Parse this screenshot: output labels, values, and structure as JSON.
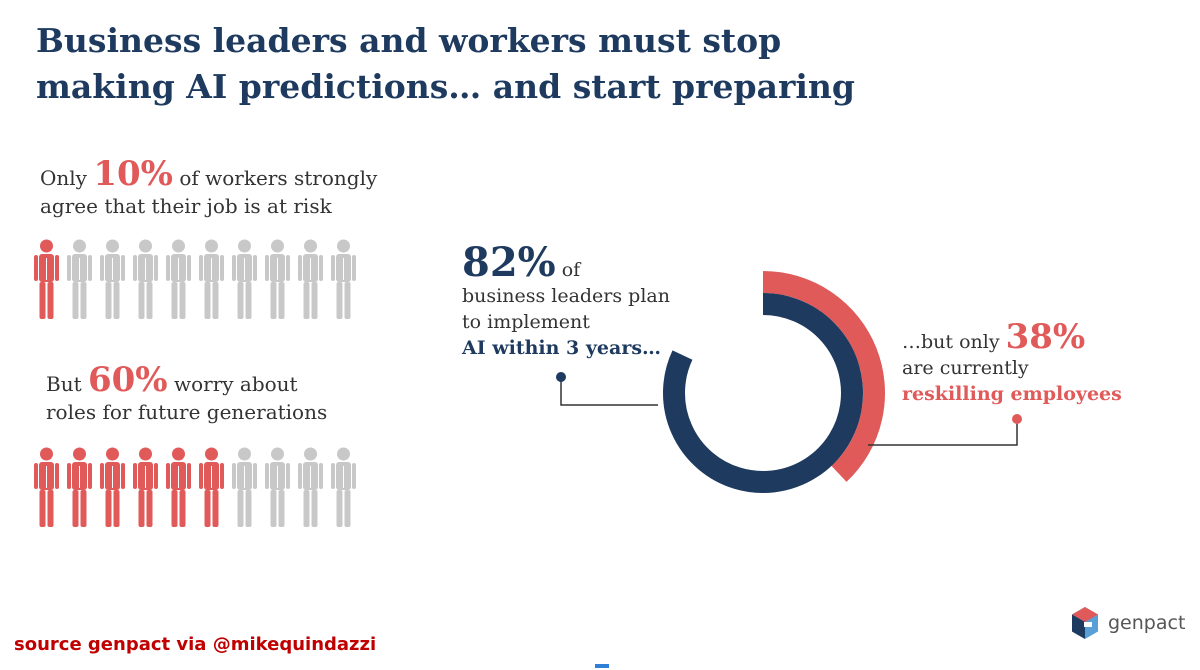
{
  "title": {
    "line1": "Business leaders and workers must stop",
    "line2": "making AI predictions… and start preparing"
  },
  "stat1": {
    "prefix": "Only",
    "percent": "10%",
    "suffix": "of workers strongly",
    "line2": "agree that their job is at risk",
    "highlighted_count": 1,
    "total": 10
  },
  "stat2": {
    "prefix": "But",
    "percent": "60%",
    "suffix": "worry  about",
    "line2": "roles for future generations",
    "highlighted_count": 6,
    "total": 10
  },
  "callout82": {
    "percent": "82%",
    "of": "of",
    "line2": "business leaders plan",
    "line3": "to implement",
    "line4": "AI within 3 years…"
  },
  "callout38": {
    "prefix": "…but only",
    "percent": "38%",
    "line2": "are currently",
    "line3": "reskilling employees"
  },
  "source": "source genpact via @mikequindazzi",
  "logo": {
    "text": "genpact"
  },
  "colors": {
    "navy": "#1e3a5f",
    "red": "#e05a5a",
    "gray": "#c8c8c8",
    "source_red": "#c00000"
  },
  "chart_data": [
    {
      "type": "pictogram",
      "title": "Only 10% of workers strongly agree that their job is at risk",
      "values": [
        10
      ],
      "highlighted": 1,
      "total": 10
    },
    {
      "type": "pictogram",
      "title": "But 60% worry about roles for future generations",
      "values": [
        60
      ],
      "highlighted": 6,
      "total": 10
    },
    {
      "type": "pie",
      "series": [
        {
          "name": "AI within 3 years…",
          "values": [
            82
          ]
        },
        {
          "name": "reskilling employees",
          "values": [
            38
          ]
        }
      ]
    }
  ]
}
